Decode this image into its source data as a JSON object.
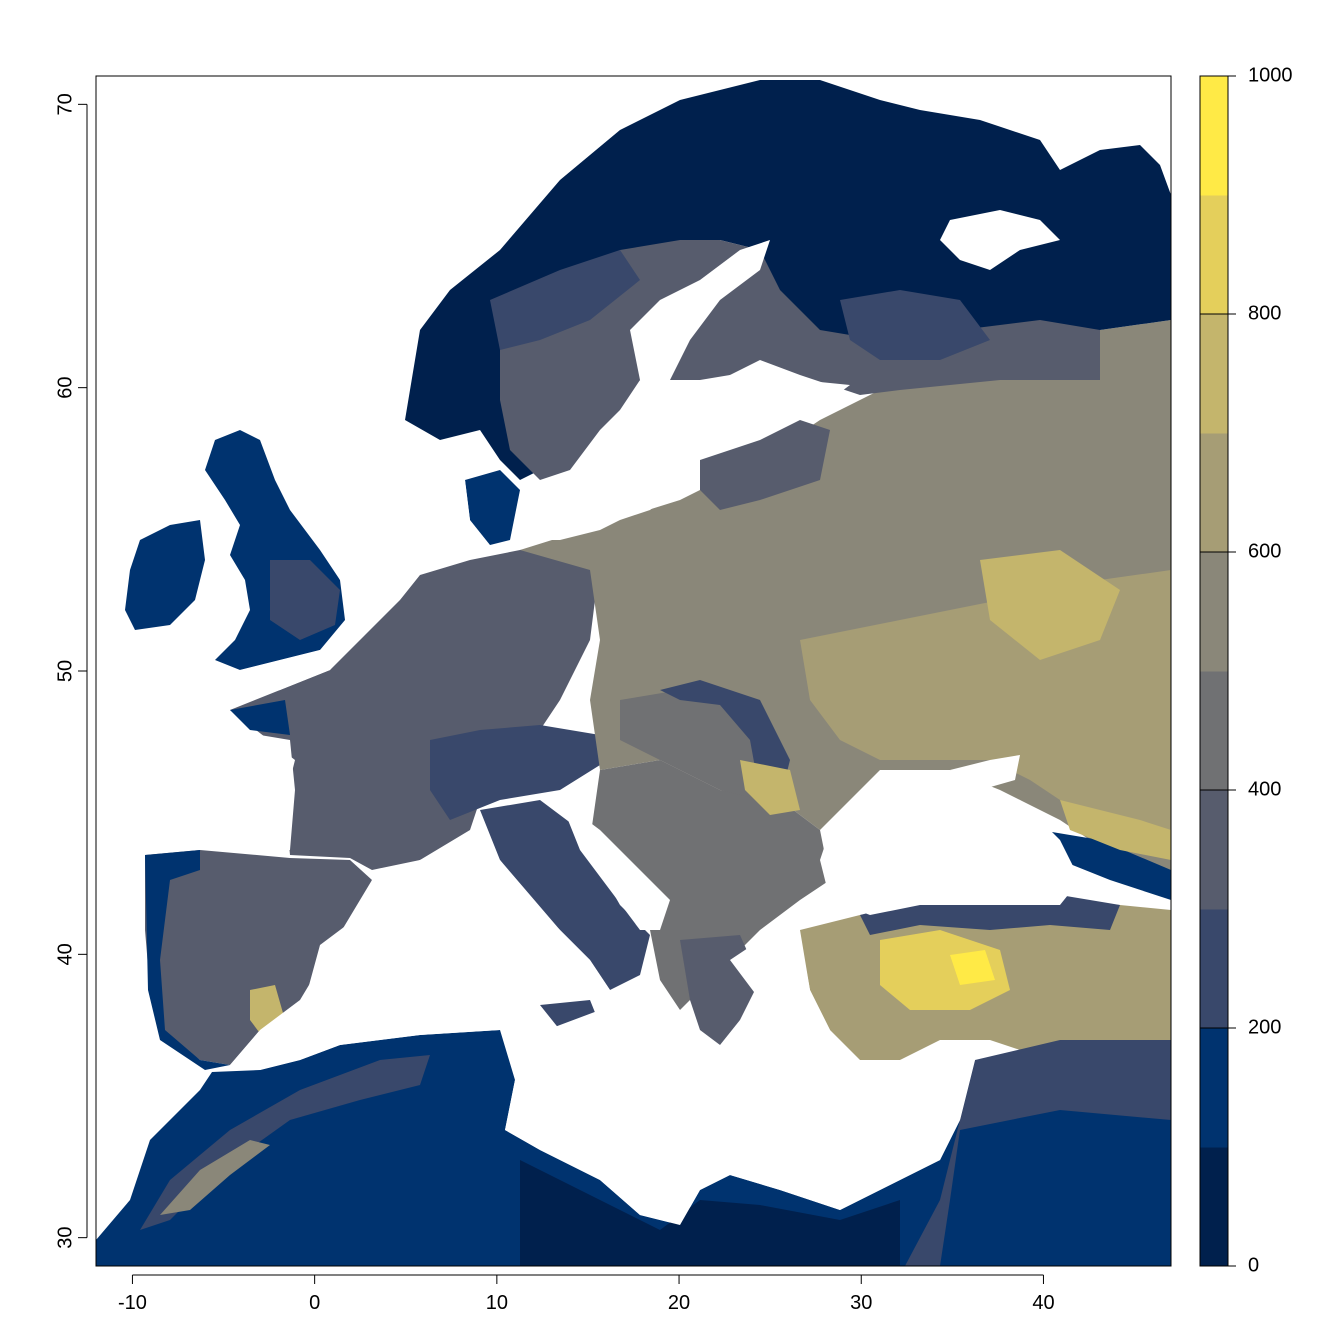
{
  "map": {
    "x_ticks": [
      "-10",
      "0",
      "10",
      "20",
      "30",
      "40"
    ],
    "y_ticks": [
      "30",
      "40",
      "50",
      "60",
      "70"
    ],
    "x_tick_values": [
      -10,
      0,
      10,
      20,
      30,
      40
    ],
    "y_tick_values": [
      30,
      40,
      50,
      60,
      70
    ],
    "xlim": [
      -12,
      47
    ],
    "ylim": [
      29,
      71
    ],
    "grid": false
  },
  "legend": {
    "placement": "right",
    "range": [
      0,
      1000
    ],
    "tick_labels": [
      "0",
      "200",
      "400",
      "600",
      "800",
      "1000"
    ],
    "tick_values": [
      0,
      200,
      400,
      600,
      800,
      1000
    ],
    "colors": [
      "#00204d",
      "#00336f",
      "#39486b",
      "#575c6d",
      "#707173",
      "#8a8779",
      "#a69d75",
      "#c4b56c",
      "#e4cf5b",
      "#ffea46"
    ]
  }
}
